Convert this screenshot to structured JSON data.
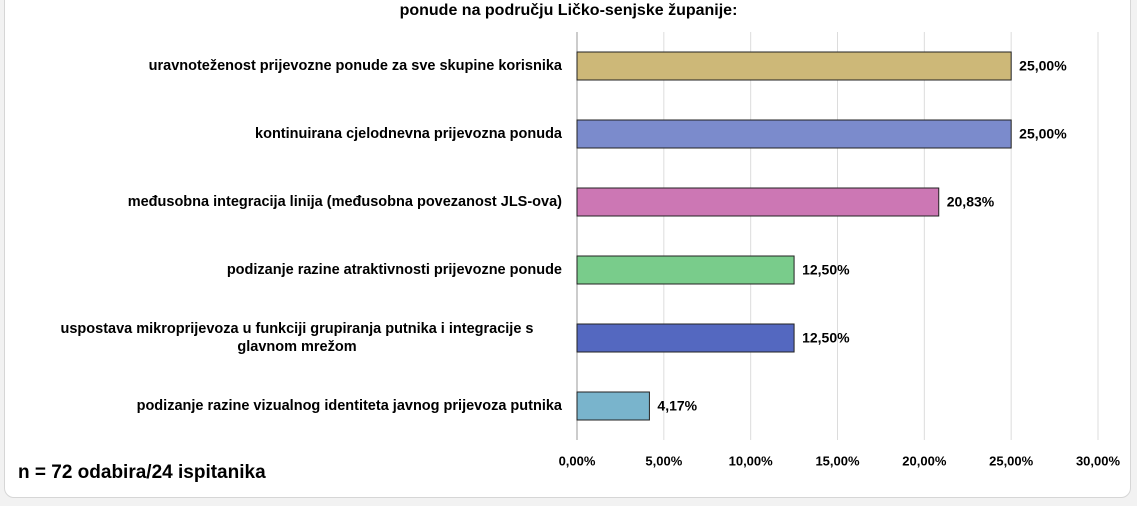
{
  "chart_data": {
    "type": "bar",
    "orientation": "horizontal",
    "title": "ponude na području Ličko-senjske županije:",
    "note": "n = 72 odabira/24 ispitanika",
    "categories": [
      "uravnoteženost prijevozne ponude za sve skupine korisnika",
      "kontinuirana cjelodnevna prijevozna ponuda",
      "međusobna integracija linija (međusobna povezanost JLS-ova)",
      "podizanje razine atraktivnosti prijevozne ponude",
      "uspostava mikroprijevoza u funkciji grupiranja putnika i integracije s glavnom mrežom",
      "podizanje razine vizualnog identiteta javnog prijevoza putnika"
    ],
    "values": [
      25,
      25,
      20.83,
      12.5,
      12.5,
      4.17
    ],
    "value_labels": [
      "25,00%",
      "25,00%",
      "20,83%",
      "12,50%",
      "12,50%",
      "4,17%"
    ],
    "colors": [
      "#cdb878",
      "#7b8bcc",
      "#cc77b4",
      "#79cc8b",
      "#5468c0",
      "#79b4cc"
    ],
    "xlim": [
      0,
      30
    ],
    "xticks": [
      {
        "value": 0,
        "label": "0,00%"
      },
      {
        "value": 5,
        "label": "5,00%"
      },
      {
        "value": 10,
        "label": "10,00%"
      },
      {
        "value": 15,
        "label": "15,00%"
      },
      {
        "value": 20,
        "label": "20,00%"
      },
      {
        "value": 25,
        "label": "25,00%"
      },
      {
        "value": 30,
        "label": "30,00%"
      }
    ],
    "grid": true
  }
}
